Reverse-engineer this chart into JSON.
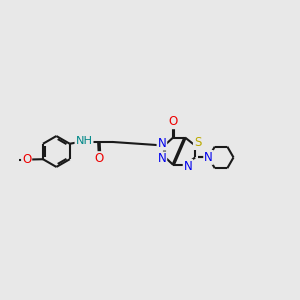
{
  "background_color": "#e8e8e8",
  "bond_color": "#1a1a1a",
  "line_width": 1.5,
  "atom_colors": {
    "N": "#0000ee",
    "O": "#ee0000",
    "S": "#bbaa00",
    "NH": "#008888",
    "C": "#1a1a1a"
  },
  "font_size": 8.5
}
